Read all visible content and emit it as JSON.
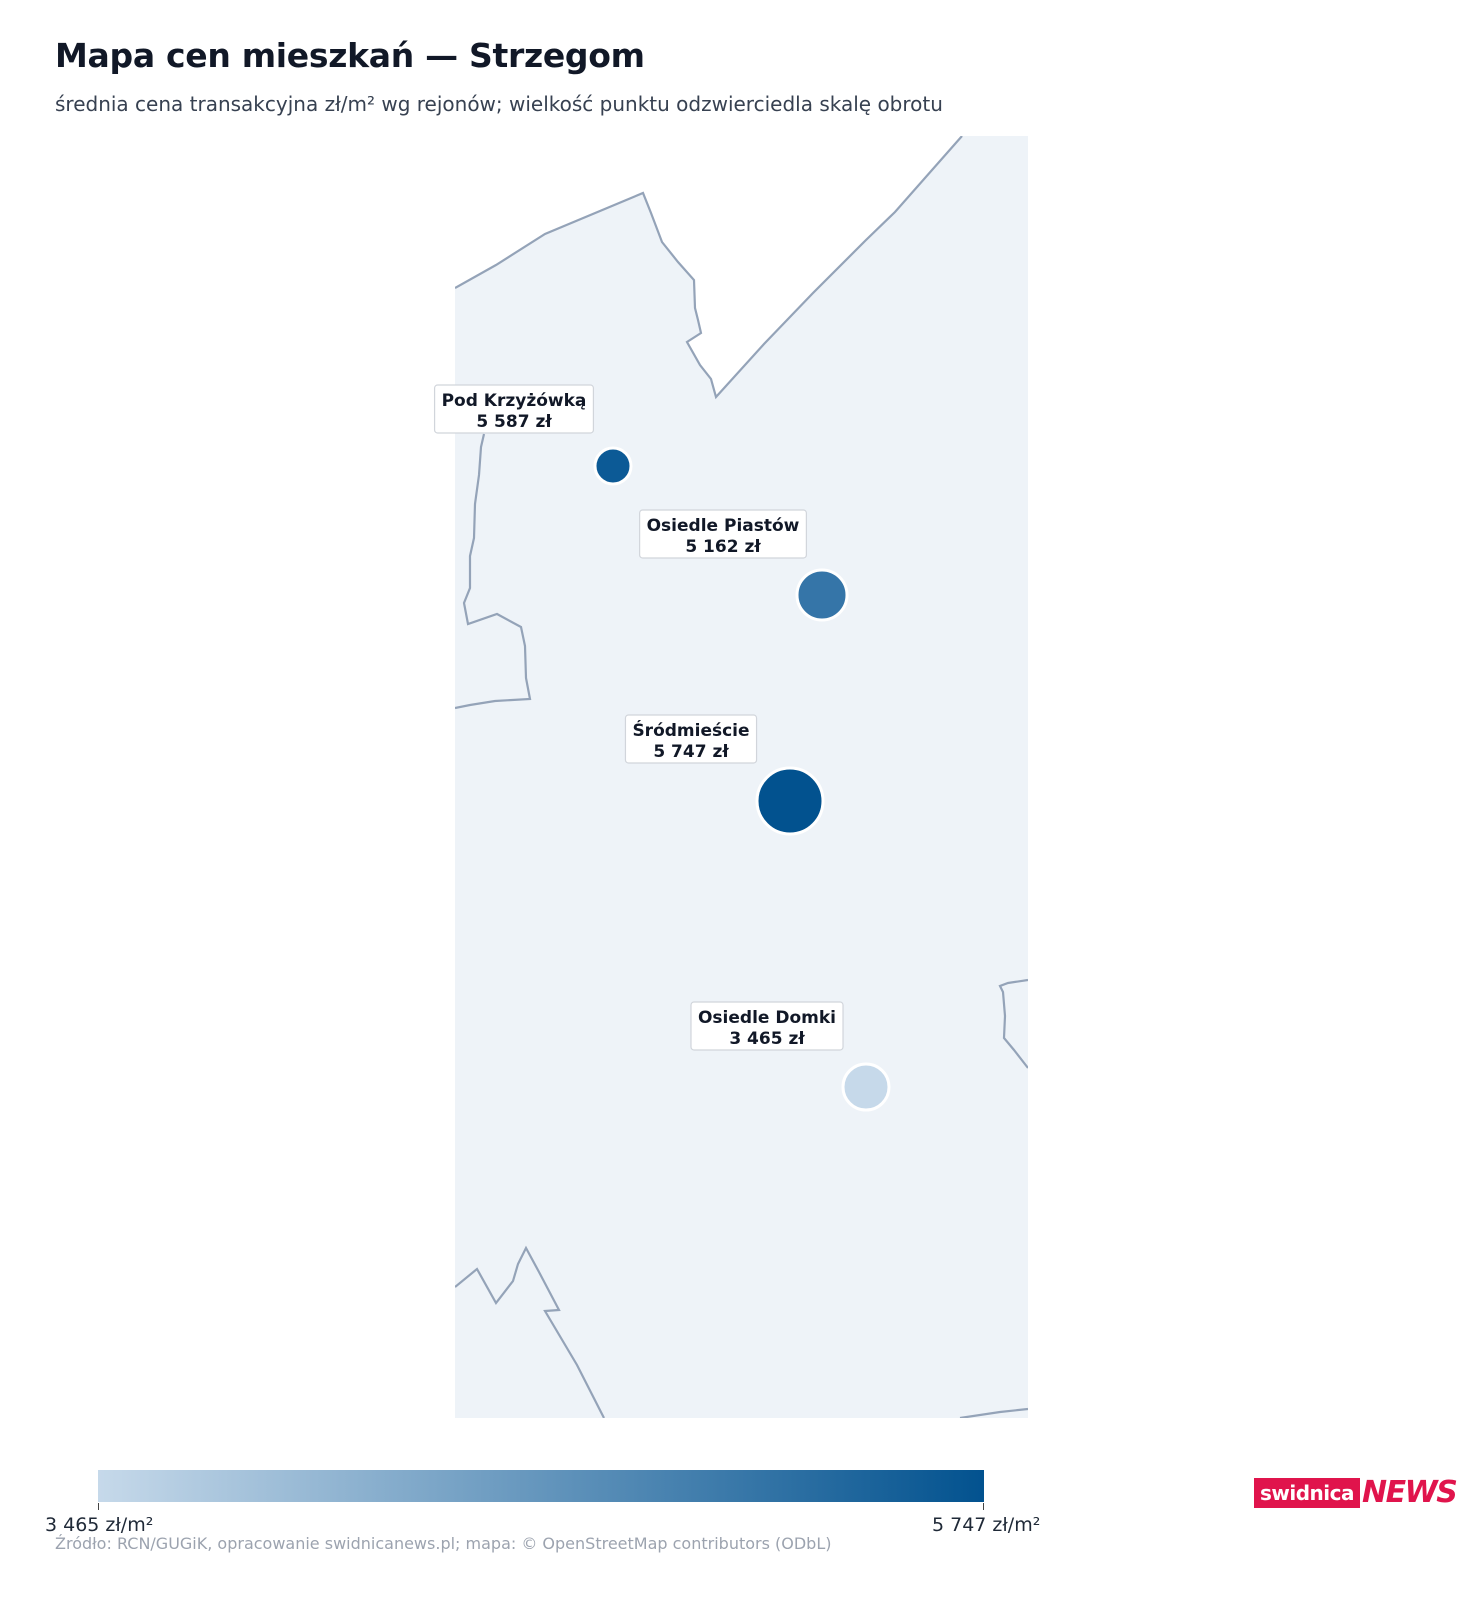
{
  "header": {
    "title": "Mapa cen mieszkań — Strzegom",
    "subtitle": "średnia cena transakcyjna zł/m² wg rejonów; wielkość punktu odzwierciedla skalę obrotu"
  },
  "map": {
    "districts": [
      {
        "name": "Pod Krzyżówką",
        "price_label": "5 587 zł",
        "price": 5587,
        "color": "#0c5a96"
      },
      {
        "name": "Osiedle Piastów",
        "price_label": "5 162 zł",
        "price": 5162,
        "color": "#3575a8"
      },
      {
        "name": "Śródmieście",
        "price_label": "5 747 zł",
        "price": 5747,
        "color": "#02528f"
      },
      {
        "name": "Osiedle Domki",
        "price_label": "3 465 zł",
        "price": 3465,
        "color": "#c6d9ea"
      }
    ],
    "colors": {
      "fill": "#eef3f8",
      "boundary": "#94a3b8",
      "marker_outline": "#ffffff"
    }
  },
  "legend": {
    "min_label": "3 465 zł/m²",
    "max_label": "5 747 zł/m²",
    "min_value": 3465,
    "max_value": 5747,
    "color_min": "#c6d9ea",
    "color_max": "#02528f"
  },
  "source": "Źródło: RCN/GUGiK, opracowanie swidnicanews.pl; mapa: © OpenStreetMap contributors (ODbL)",
  "logo": {
    "part_a": "swidnica",
    "part_b": "NEWS",
    "color": "#e0144c"
  }
}
